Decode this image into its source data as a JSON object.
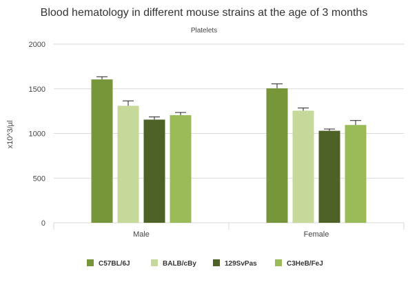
{
  "chart_data": {
    "type": "bar",
    "title": "Blood hematology in different mouse strains at the age of 3 months",
    "subtitle": "Platelets",
    "ylabel": "x10^3/µl",
    "ylim": [
      0,
      2000
    ],
    "yticks": [
      0,
      500,
      1000,
      1500,
      2000
    ],
    "categories": [
      "Male",
      "Female"
    ],
    "series": [
      {
        "name": "C57BL/6J",
        "color": "#77963a",
        "values": [
          1605,
          1505
        ],
        "errors": [
          30,
          50
        ]
      },
      {
        "name": "BALB/cBy",
        "color": "#c6d99a",
        "values": [
          1310,
          1255
        ],
        "errors": [
          55,
          30
        ]
      },
      {
        "name": "129SvPas",
        "color": "#4e6228",
        "values": [
          1155,
          1030
        ],
        "errors": [
          30,
          20
        ]
      },
      {
        "name": "C3HeB/FeJ",
        "color": "#9bbb59",
        "values": [
          1205,
          1095
        ],
        "errors": [
          30,
          50
        ]
      }
    ],
    "grid": true,
    "legend": "bottom"
  }
}
